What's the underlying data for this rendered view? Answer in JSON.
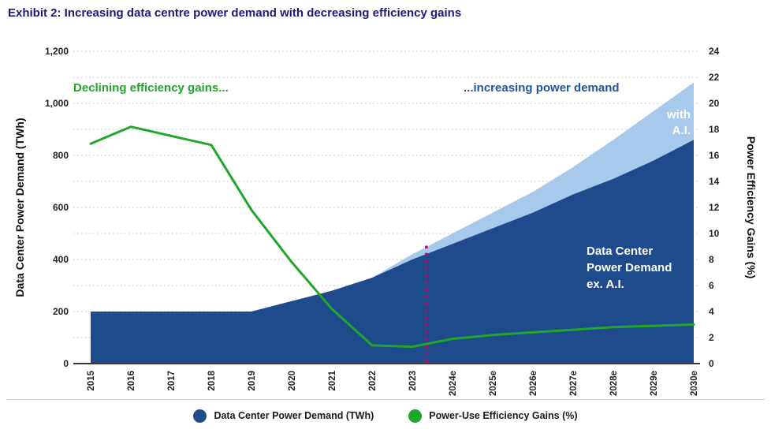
{
  "page": {
    "title": "Exhibit 2: Increasing data centre power demand with decreasing efficiency gains",
    "title_color": "#1c1a7e"
  },
  "annotations": {
    "declining": {
      "text": "Declining efficiency gains...",
      "color": "#22a52b"
    },
    "increasing": {
      "text": "...increasing power demand",
      "color": "#2155a4"
    },
    "with_ai": {
      "text": "with\nA.I.",
      "color": "#ffffff"
    },
    "ex_ai": {
      "text": "Data Center\nPower Demand\nex. A.I.",
      "color": "#ffffff"
    }
  },
  "legend": [
    {
      "label": "Data Center Power Demand (TWh)",
      "color": "#1e4b8c"
    },
    {
      "label": "Power-Use Efficiency Gains (%)",
      "color": "#22a52b"
    }
  ],
  "chart_data": {
    "type": "area+line",
    "title": "Exhibit 2: Increasing data centre power demand with decreasing efficiency gains",
    "categories": [
      "2015",
      "2016",
      "2017",
      "2018",
      "2019",
      "2020",
      "2021",
      "2022",
      "2023",
      "2024e",
      "2025e",
      "2026e",
      "2027e",
      "2028e",
      "2029e",
      "2030e"
    ],
    "ylabel_left": "Data Center Power Demand (TWh)",
    "ylabel_right": "Power Efficiency Gains (%)",
    "y_left": {
      "min": 0,
      "max": 1200,
      "tick_step": 200,
      "grid_step": 100,
      "tick_labels": [
        "0",
        "200",
        "400",
        "600",
        "800",
        "1,000",
        "1,200"
      ]
    },
    "y_right": {
      "min": 0,
      "max": 24,
      "tick_step": 2,
      "tick_labels": [
        "0",
        "2",
        "4",
        "6",
        "8",
        "10",
        "12",
        "14",
        "16",
        "18",
        "20",
        "22",
        "24"
      ]
    },
    "grid": true,
    "legend_position": "bottom",
    "series": [
      {
        "name": "Data Center Power Demand with A.I. (TWh)",
        "type": "area",
        "axis": "left",
        "color": "#a6c9ec",
        "values": [
          200,
          200,
          200,
          200,
          200,
          240,
          280,
          330,
          420,
          500,
          580,
          660,
          755,
          860,
          970,
          1080
        ]
      },
      {
        "name": "Data Center Power Demand ex. A.I. (TWh)",
        "type": "area",
        "axis": "left",
        "color": "#1e4b8c",
        "values": [
          200,
          200,
          200,
          200,
          200,
          240,
          280,
          330,
          400,
          460,
          520,
          580,
          650,
          710,
          780,
          860
        ]
      },
      {
        "name": "Power-Use Efficiency Gains (%)",
        "type": "line",
        "axis": "right",
        "color": "#22a52b",
        "values": [
          16.9,
          18.2,
          17.5,
          16.8,
          11.8,
          7.8,
          4.2,
          1.4,
          1.3,
          1.9,
          2.2,
          2.4,
          2.6,
          2.8,
          2.9,
          3.0
        ]
      }
    ],
    "forecast_divider": {
      "between": [
        "2023",
        "2024e"
      ],
      "position": 8.35,
      "y_top": 455,
      "color": "#c2066e"
    }
  }
}
